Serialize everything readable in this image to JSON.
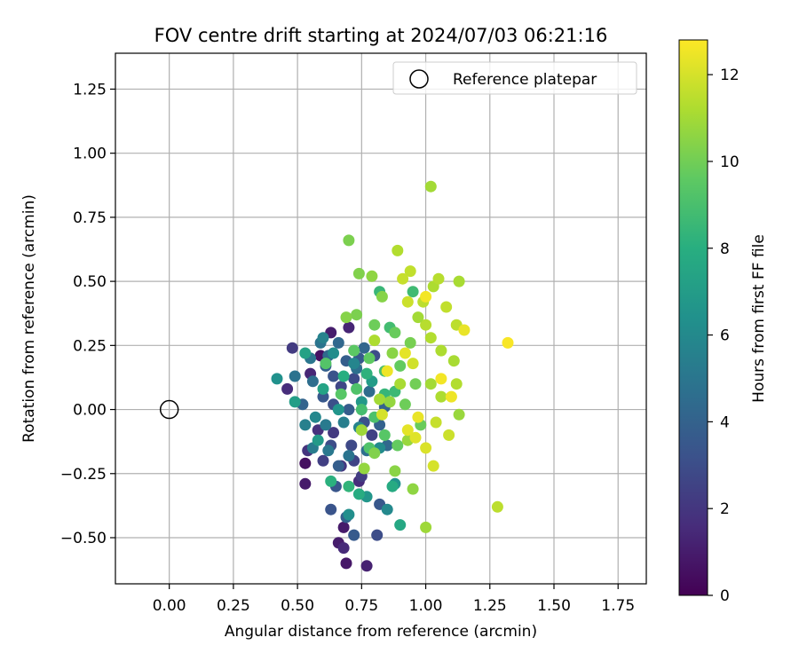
{
  "chart_data": {
    "type": "scatter",
    "title": "FOV centre drift starting at 2024/07/03 06:21:16",
    "xlabel": "Angular distance from reference (arcmin)",
    "ylabel": "Rotation from reference (arcmin)",
    "xlim": [
      -0.21,
      1.86
    ],
    "ylim": [
      -0.68,
      1.39
    ],
    "xticks": [
      0.0,
      0.25,
      0.5,
      0.75,
      1.0,
      1.25,
      1.5,
      1.75
    ],
    "xtick_labels": [
      "0.00",
      "0.25",
      "0.50",
      "0.75",
      "1.00",
      "1.25",
      "1.50",
      "1.75"
    ],
    "yticks": [
      -0.5,
      -0.25,
      0.0,
      0.25,
      0.5,
      0.75,
      1.0,
      1.25
    ],
    "ytick_labels": [
      "−0.50",
      "−0.25",
      "0.00",
      "0.25",
      "0.50",
      "0.75",
      "1.00",
      "1.25"
    ],
    "grid": true,
    "legend": {
      "position": "top-right",
      "entries": [
        "Reference platepar"
      ]
    },
    "reference_point": {
      "x": 0.0,
      "y": 0.0,
      "label": "Reference platepar"
    },
    "colorbar": {
      "label": "Hours from first FF file",
      "range": [
        0,
        12.8
      ],
      "ticks": [
        0,
        2,
        4,
        6,
        8,
        10,
        12
      ],
      "tick_labels": [
        "0",
        "2",
        "4",
        "6",
        "8",
        "10",
        "12"
      ],
      "colormap": "viridis"
    },
    "series": [
      {
        "marker": "circle",
        "points": [
          [
            0.69,
            -0.6,
            0.8
          ],
          [
            0.77,
            -0.61,
            1.2
          ],
          [
            0.66,
            -0.52,
            1.0
          ],
          [
            0.68,
            -0.54,
            1.5
          ],
          [
            0.68,
            -0.46,
            0.9
          ],
          [
            0.53,
            -0.21,
            0.5
          ],
          [
            0.53,
            -0.29,
            0.9
          ],
          [
            0.59,
            0.21,
            0.6
          ],
          [
            0.46,
            0.08,
            1.6
          ],
          [
            0.54,
            -0.16,
            1.9
          ],
          [
            0.55,
            0.14,
            1.4
          ],
          [
            0.48,
            0.24,
            2.2
          ],
          [
            0.63,
            0.3,
            1.0
          ],
          [
            0.7,
            0.32,
            1.3
          ],
          [
            0.64,
            -0.09,
            2.1
          ],
          [
            0.58,
            -0.08,
            1.8
          ],
          [
            0.67,
            -0.22,
            2.0
          ],
          [
            0.74,
            -0.28,
            1.6
          ],
          [
            0.6,
            -0.2,
            2.4
          ],
          [
            0.72,
            -0.2,
            2.6
          ],
          [
            0.63,
            -0.39,
            3.3
          ],
          [
            0.81,
            -0.49,
            3.0
          ],
          [
            0.72,
            -0.49,
            3.6
          ],
          [
            0.82,
            -0.37,
            3.5
          ],
          [
            0.69,
            -0.42,
            3.9
          ],
          [
            0.65,
            -0.3,
            3.4
          ],
          [
            0.75,
            -0.26,
            2.3
          ],
          [
            0.66,
            -0.22,
            3.8
          ],
          [
            0.63,
            -0.14,
            3.0
          ],
          [
            0.71,
            -0.14,
            2.8
          ],
          [
            0.79,
            -0.1,
            2.5
          ],
          [
            0.76,
            -0.05,
            3.2
          ],
          [
            0.82,
            -0.06,
            4.0
          ],
          [
            0.7,
            0.0,
            3.7
          ],
          [
            0.64,
            0.02,
            3.1
          ],
          [
            0.6,
            0.05,
            3.5
          ],
          [
            0.67,
            0.09,
            2.7
          ],
          [
            0.72,
            0.12,
            2.9
          ],
          [
            0.64,
            0.13,
            3.3
          ],
          [
            0.61,
            0.17,
            3.9
          ],
          [
            0.74,
            0.2,
            3.6
          ],
          [
            0.8,
            0.21,
            3.0
          ],
          [
            0.76,
            0.24,
            4.2
          ],
          [
            0.69,
            0.19,
            3.8
          ],
          [
            0.62,
            0.21,
            4.4
          ],
          [
            0.56,
            0.11,
            4.6
          ],
          [
            0.52,
            0.02,
            4.1
          ],
          [
            0.49,
            0.13,
            4.8
          ],
          [
            0.55,
            0.2,
            5.0
          ],
          [
            0.59,
            0.26,
            4.9
          ],
          [
            0.66,
            0.26,
            4.3
          ],
          [
            0.73,
            0.16,
            4.7
          ],
          [
            0.78,
            0.07,
            4.5
          ],
          [
            0.84,
            0.01,
            4.0
          ],
          [
            0.85,
            -0.14,
            4.3
          ],
          [
            0.77,
            -0.16,
            4.6
          ],
          [
            0.7,
            -0.18,
            4.9
          ],
          [
            0.62,
            -0.16,
            5.1
          ],
          [
            0.56,
            -0.15,
            5.3
          ],
          [
            0.53,
            -0.06,
            5.5
          ],
          [
            0.57,
            -0.03,
            5.9
          ],
          [
            0.61,
            -0.06,
            5.2
          ],
          [
            0.68,
            -0.05,
            5.4
          ],
          [
            0.74,
            -0.07,
            5.7
          ],
          [
            0.82,
            -0.15,
            6.1
          ],
          [
            0.88,
            -0.29,
            6.5
          ],
          [
            0.85,
            -0.39,
            6.0
          ],
          [
            0.77,
            -0.34,
            6.7
          ],
          [
            0.7,
            -0.41,
            6.3
          ],
          [
            0.58,
            -0.12,
            6.9
          ],
          [
            0.66,
            0.0,
            6.6
          ],
          [
            0.75,
            0.03,
            6.8
          ],
          [
            0.79,
            0.11,
            7.0
          ],
          [
            0.72,
            0.18,
            5.8
          ],
          [
            0.64,
            0.22,
            6.2
          ],
          [
            0.6,
            0.28,
            5.6
          ],
          [
            0.42,
            0.12,
            6.4
          ],
          [
            0.49,
            0.03,
            7.1
          ],
          [
            0.53,
            0.22,
            7.3
          ],
          [
            0.6,
            0.08,
            7.4
          ],
          [
            0.9,
            -0.45,
            7.6
          ],
          [
            0.87,
            -0.3,
            7.8
          ],
          [
            0.74,
            -0.33,
            7.9
          ],
          [
            0.63,
            -0.28,
            8.1
          ],
          [
            0.7,
            -0.3,
            8.3
          ],
          [
            0.68,
            0.13,
            8.0
          ],
          [
            0.77,
            0.14,
            8.2
          ],
          [
            0.84,
            0.06,
            8.4
          ],
          [
            0.88,
            0.07,
            8.6
          ],
          [
            0.86,
            0.32,
            8.8
          ],
          [
            0.82,
            0.46,
            8.5
          ],
          [
            0.95,
            0.46,
            8.7
          ],
          [
            0.75,
            0.0,
            8.9
          ],
          [
            0.8,
            -0.03,
            9.1
          ],
          [
            0.73,
            0.08,
            9.2
          ],
          [
            0.67,
            0.06,
            9.4
          ],
          [
            0.61,
            0.18,
            9.3
          ],
          [
            0.72,
            0.23,
            9.5
          ],
          [
            0.78,
            0.2,
            9.6
          ],
          [
            0.84,
            0.15,
            9.0
          ],
          [
            0.78,
            -0.15,
            9.2
          ],
          [
            0.84,
            -0.1,
            9.4
          ],
          [
            0.89,
            -0.14,
            9.7
          ],
          [
            0.98,
            -0.06,
            9.8
          ],
          [
            0.92,
            0.02,
            9.9
          ],
          [
            0.96,
            0.1,
            10.0
          ],
          [
            0.9,
            0.17,
            9.7
          ],
          [
            0.94,
            0.26,
            10.1
          ],
          [
            0.88,
            0.3,
            9.8
          ],
          [
            0.8,
            0.33,
            9.9
          ],
          [
            0.73,
            0.37,
            10.2
          ],
          [
            0.69,
            0.36,
            10.4
          ],
          [
            0.74,
            0.53,
            10.3
          ],
          [
            0.7,
            0.66,
            10.2
          ],
          [
            0.79,
            0.52,
            10.6
          ],
          [
            0.83,
            0.44,
            10.4
          ],
          [
            0.87,
            0.22,
            10.5
          ],
          [
            0.86,
            0.03,
            10.7
          ],
          [
            0.93,
            -0.12,
            10.8
          ],
          [
            0.95,
            -0.31,
            10.6
          ],
          [
            1.0,
            -0.46,
            10.9
          ],
          [
            0.88,
            -0.24,
            10.5
          ],
          [
            0.8,
            -0.17,
            10.3
          ],
          [
            0.76,
            -0.23,
            10.7
          ],
          [
            0.75,
            -0.08,
            10.9
          ],
          [
            0.82,
            0.04,
            11.0
          ],
          [
            0.9,
            0.1,
            11.1
          ],
          [
            1.02,
            0.1,
            11.0
          ],
          [
            1.06,
            0.05,
            11.2
          ],
          [
            1.13,
            -0.02,
            10.8
          ],
          [
            1.12,
            0.1,
            11.3
          ],
          [
            1.11,
            0.19,
            11.1
          ],
          [
            1.06,
            0.23,
            11.2
          ],
          [
            1.02,
            0.28,
            11.3
          ],
          [
            1.0,
            0.33,
            11.4
          ],
          [
            0.97,
            0.36,
            11.0
          ],
          [
            0.99,
            0.42,
            11.5
          ],
          [
            1.03,
            0.48,
            11.2
          ],
          [
            1.05,
            0.51,
            11.4
          ],
          [
            1.08,
            0.4,
            11.6
          ],
          [
            1.12,
            0.33,
            11.5
          ],
          [
            1.13,
            0.5,
            11.1
          ],
          [
            0.89,
            0.62,
            11.3
          ],
          [
            1.02,
            0.87,
            11.0
          ],
          [
            0.94,
            0.54,
            11.6
          ],
          [
            0.91,
            0.51,
            11.7
          ],
          [
            0.93,
            0.42,
            11.8
          ],
          [
            0.95,
            0.18,
            11.9
          ],
          [
            1.04,
            -0.05,
            11.7
          ],
          [
            1.09,
            -0.1,
            11.8
          ],
          [
            1.03,
            -0.22,
            12.0
          ],
          [
            1.0,
            -0.15,
            12.1
          ],
          [
            0.96,
            -0.11,
            12.2
          ],
          [
            0.93,
            -0.08,
            12.3
          ],
          [
            0.97,
            -0.03,
            12.4
          ],
          [
            1.1,
            0.05,
            12.5
          ],
          [
            1.06,
            0.12,
            12.6
          ],
          [
            0.92,
            0.22,
            12.3
          ],
          [
            0.85,
            0.15,
            12.5
          ],
          [
            1.15,
            0.31,
            12.4
          ],
          [
            1.0,
            0.44,
            12.6
          ],
          [
            1.32,
            0.26,
            12.7
          ],
          [
            1.28,
            -0.38,
            11.5
          ],
          [
            0.8,
            0.27,
            11.2
          ],
          [
            0.83,
            -0.02,
            12.0
          ]
        ]
      }
    ]
  }
}
